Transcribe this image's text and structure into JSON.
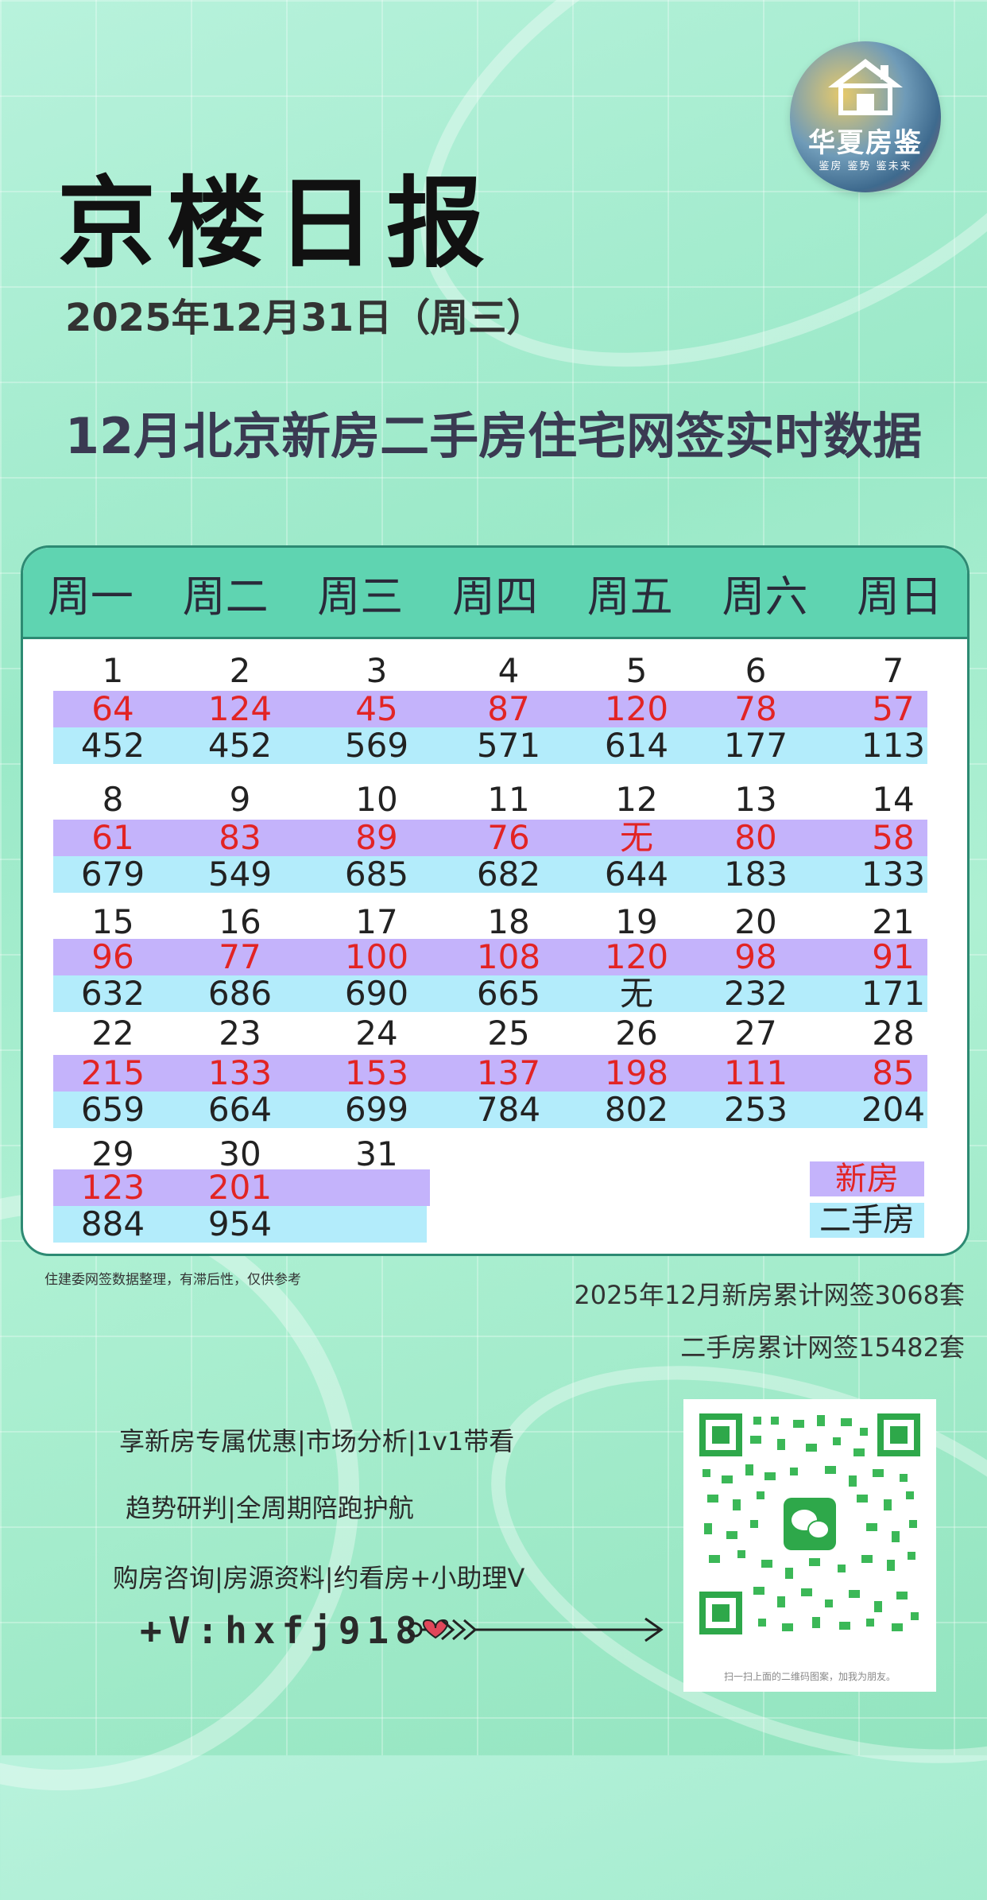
{
  "header": {
    "title": "京楼日报",
    "date": "2025年12月31日（周三）",
    "subtitle": "12月北京新房二手房住宅网签实时数据"
  },
  "logo": {
    "brand": "华夏房鉴",
    "slogan": "鉴房 鉴势 鉴未来"
  },
  "calendar": {
    "weekdays": [
      "周一",
      "周二",
      "周三",
      "周四",
      "周五",
      "周六",
      "周日"
    ],
    "weeks": [
      {
        "days": [
          "1",
          "2",
          "3",
          "4",
          "5",
          "6",
          "7"
        ],
        "new": [
          "64",
          "124",
          "45",
          "87",
          "120",
          "78",
          "57"
        ],
        "second": [
          "452",
          "452",
          "569",
          "571",
          "614",
          "177",
          "113"
        ]
      },
      {
        "days": [
          "8",
          "9",
          "10",
          "11",
          "12",
          "13",
          "14"
        ],
        "new": [
          "61",
          "83",
          "89",
          "76",
          "无",
          "80",
          "58"
        ],
        "second": [
          "679",
          "549",
          "685",
          "682",
          "644",
          "183",
          "133"
        ]
      },
      {
        "days": [
          "15",
          "16",
          "17",
          "18",
          "19",
          "20",
          "21"
        ],
        "new": [
          "96",
          "77",
          "100",
          "108",
          "120",
          "98",
          "91"
        ],
        "second": [
          "632",
          "686",
          "690",
          "665",
          "无",
          "232",
          "171"
        ]
      },
      {
        "days": [
          "22",
          "23",
          "24",
          "25",
          "26",
          "27",
          "28"
        ],
        "new": [
          "215",
          "133",
          "153",
          "137",
          "198",
          "111",
          "85"
        ],
        "second": [
          "659",
          "664",
          "699",
          "784",
          "802",
          "253",
          "204"
        ]
      },
      {
        "days": [
          "29",
          "30",
          "31"
        ],
        "new": [
          "123",
          "201"
        ],
        "second": [
          "884",
          "954"
        ]
      }
    ],
    "legend": {
      "new": "新房",
      "second": "二手房"
    }
  },
  "footer": {
    "note": "住建委网签数据整理，有滞后性，仅供参考",
    "total_new": "2025年12月新房累计网签3068套",
    "total_second": "二手房累计网签15482套"
  },
  "promo": {
    "line1": "享新房专属优惠|市场分析|1v1带看",
    "line2": "趋势研判|全周期陪跑护航",
    "line3": "购房咨询|房源资料|约看房+小助理V",
    "wechat": "+V:hxfj918",
    "qr_caption": "扫一扫上面的二维码图案，加我为朋友。"
  },
  "colors": {
    "new_row": "#c4b3fb",
    "second_row": "#b3ecfb",
    "header_bar": "#5fd4b1",
    "new_value": "#e22424"
  }
}
